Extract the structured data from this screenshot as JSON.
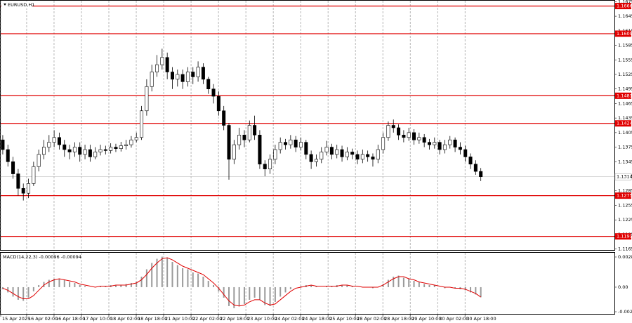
{
  "chart_data": [
    {
      "type": "candlestick",
      "title": "EURUSD,H1",
      "xlim": [
        -0.4,
        119
      ],
      "xticks": [
        {
          "value": -0.4,
          "label": "15 Apr 2025"
        },
        {
          "value": 4.65,
          "label": "16 Apr 02:00"
        },
        {
          "value": 9.98,
          "label": "16 Apr 18:00"
        },
        {
          "value": 15.31,
          "label": "17 Apr 10:00"
        },
        {
          "value": 20.64,
          "label": "18 Apr 02:00"
        },
        {
          "value": 25.97,
          "label": "18 Apr 18:00"
        },
        {
          "value": 31.3,
          "label": "21 Apr 10:00"
        },
        {
          "value": 36.63,
          "label": "22 Apr 02:00"
        },
        {
          "value": 41.96,
          "label": "22 Apr 18:00"
        },
        {
          "value": 47.29,
          "label": "23 Apr 10:00"
        },
        {
          "value": 52.62,
          "label": "24 Apr 02:00"
        },
        {
          "value": 57.95,
          "label": "24 Apr 18:00"
        },
        {
          "value": 63.28,
          "label": "25 Apr 10:00"
        },
        {
          "value": 68.61,
          "label": "28 Apr 02:00"
        },
        {
          "value": 73.94,
          "label": "28 Apr 18:00"
        },
        {
          "value": 79.27,
          "label": "29 Apr 10:00"
        },
        {
          "value": 84.6,
          "label": "30 Apr 02:00"
        },
        {
          "value": 89.93,
          "label": "30 Apr 18:00"
        }
      ],
      "ylim": [
        1.1163,
        1.1677
      ],
      "yticks": [
        1.1165,
        1.1195,
        1.1225,
        1.1255,
        1.1285,
        1.1315,
        1.1345,
        1.1375,
        1.1405,
        1.1435,
        1.1465,
        1.1495,
        1.1525,
        1.1555,
        1.1585,
        1.1615,
        1.1645,
        1.1675
      ],
      "grid": true,
      "levels": {
        "color": "#e00000",
        "values": [
          1.1666,
          1.1609,
          1.1481,
          1.1424,
          1.1275,
          1.1191
        ]
      },
      "last_price": 1.1314,
      "up_color": "#ffffff",
      "down_color": "#000000",
      "open": [
        1.139,
        1.137,
        1.1345,
        1.132,
        1.129,
        1.128,
        1.13,
        1.1335,
        1.136,
        1.1375,
        1.1385,
        1.1395,
        1.138,
        1.137,
        1.1365,
        1.1375,
        1.136,
        1.137,
        1.1355,
        1.1365,
        1.137,
        1.1368,
        1.1375,
        1.1372,
        1.1378,
        1.138,
        1.139,
        1.1395,
        1.145,
        1.15,
        1.153,
        1.1545,
        1.156,
        1.153,
        1.1515,
        1.1525,
        1.151,
        1.153,
        1.152,
        1.154,
        1.1515,
        1.1495,
        1.148,
        1.145,
        1.142,
        1.135,
        1.138,
        1.14,
        1.139,
        1.142,
        1.14,
        1.134,
        1.133,
        1.135,
        1.137,
        1.1385,
        1.138,
        1.139,
        1.1375,
        1.1385,
        1.136,
        1.1345,
        1.135,
        1.1365,
        1.1375,
        1.136,
        1.137,
        1.1355,
        1.1365,
        1.136,
        1.135,
        1.136,
        1.1355,
        1.135,
        1.137,
        1.1395,
        1.142,
        1.1415,
        1.14,
        1.1395,
        1.1405,
        1.139,
        1.1395,
        1.1385,
        1.138,
        1.1385,
        1.137,
        1.138,
        1.139,
        1.1375,
        1.137,
        1.1355,
        1.134,
        1.1325
      ],
      "high": [
        1.14,
        1.138,
        1.1355,
        1.133,
        1.13,
        1.131,
        1.1345,
        1.137,
        1.139,
        1.14,
        1.141,
        1.1405,
        1.139,
        1.138,
        1.1385,
        1.1385,
        1.138,
        1.138,
        1.1375,
        1.138,
        1.1378,
        1.1383,
        1.1382,
        1.1386,
        1.139,
        1.1398,
        1.1405,
        1.146,
        1.1515,
        1.1545,
        1.1565,
        1.1578,
        1.157,
        1.154,
        1.1535,
        1.1535,
        1.154,
        1.154,
        1.1552,
        1.1548,
        1.152,
        1.1505,
        1.149,
        1.146,
        1.1425,
        1.139,
        1.1415,
        1.141,
        1.143,
        1.144,
        1.141,
        1.1348,
        1.136,
        1.138,
        1.1395,
        1.1392,
        1.14,
        1.1398,
        1.1395,
        1.139,
        1.1368,
        1.136,
        1.1375,
        1.1388,
        1.1382,
        1.138,
        1.1378,
        1.1375,
        1.1372,
        1.1368,
        1.137,
        1.1368,
        1.1362,
        1.138,
        1.1405,
        1.1428,
        1.1432,
        1.1422,
        1.141,
        1.1415,
        1.1412,
        1.1405,
        1.1402,
        1.1392,
        1.1395,
        1.139,
        1.139,
        1.1398,
        1.1395,
        1.1385,
        1.1378,
        1.1362,
        1.1348,
        1.1332
      ],
      "low": [
        1.136,
        1.1335,
        1.131,
        1.1275,
        1.1265,
        1.127,
        1.1295,
        1.1325,
        1.135,
        1.1365,
        1.1375,
        1.137,
        1.1355,
        1.135,
        1.1355,
        1.1345,
        1.135,
        1.1345,
        1.135,
        1.1358,
        1.136,
        1.1362,
        1.1365,
        1.1366,
        1.137,
        1.1374,
        1.1385,
        1.139,
        1.144,
        1.149,
        1.152,
        1.1535,
        1.1515,
        1.1495,
        1.15,
        1.1495,
        1.15,
        1.1505,
        1.151,
        1.1505,
        1.1485,
        1.1465,
        1.144,
        1.141,
        1.1308,
        1.134,
        1.137,
        1.1375,
        1.1385,
        1.139,
        1.133,
        1.1315,
        1.132,
        1.134,
        1.1362,
        1.137,
        1.1372,
        1.1365,
        1.1368,
        1.135,
        1.133,
        1.1335,
        1.1342,
        1.1358,
        1.135,
        1.1352,
        1.1345,
        1.1348,
        1.135,
        1.134,
        1.1342,
        1.1345,
        1.1335,
        1.1342,
        1.1362,
        1.1388,
        1.1405,
        1.139,
        1.1385,
        1.1388,
        1.138,
        1.1382,
        1.1375,
        1.137,
        1.1372,
        1.136,
        1.1362,
        1.1372,
        1.1365,
        1.136,
        1.1345,
        1.133,
        1.1318,
        1.1305
      ],
      "close": [
        1.137,
        1.1345,
        1.132,
        1.129,
        1.128,
        1.13,
        1.1335,
        1.136,
        1.1375,
        1.1385,
        1.1395,
        1.138,
        1.137,
        1.1365,
        1.1375,
        1.136,
        1.137,
        1.1355,
        1.1365,
        1.137,
        1.1368,
        1.1375,
        1.1372,
        1.1378,
        1.138,
        1.139,
        1.1395,
        1.145,
        1.15,
        1.153,
        1.1545,
        1.156,
        1.153,
        1.1515,
        1.1525,
        1.151,
        1.153,
        1.152,
        1.154,
        1.1515,
        1.1495,
        1.148,
        1.145,
        1.142,
        1.135,
        1.138,
        1.14,
        1.139,
        1.142,
        1.14,
        1.134,
        1.133,
        1.135,
        1.137,
        1.1385,
        1.138,
        1.139,
        1.1375,
        1.1385,
        1.136,
        1.1345,
        1.135,
        1.1365,
        1.1375,
        1.136,
        1.137,
        1.1355,
        1.1365,
        1.136,
        1.135,
        1.136,
        1.1355,
        1.135,
        1.137,
        1.1395,
        1.142,
        1.1415,
        1.14,
        1.1395,
        1.1405,
        1.139,
        1.1395,
        1.1385,
        1.138,
        1.1385,
        1.137,
        1.138,
        1.139,
        1.1375,
        1.137,
        1.1355,
        1.134,
        1.1325,
        1.1314
      ]
    },
    {
      "type": "macd",
      "title": "MACD(14,22,3) -0.00096 -0.00094",
      "ylim": [
        -0.00254,
        0.00327
      ],
      "yticks": [
        0.00287,
        {
          "value": 0,
          "label": "0.00"
        },
        -0.00234
      ],
      "series": [
        {
          "style": "histogram",
          "color": "#9a9a9a",
          "values": [
            -0.0002,
            -0.0005,
            -0.0009,
            -0.0012,
            -0.0013,
            -0.001,
            -0.0004,
            0.0002,
            0.0005,
            0.0007,
            0.0008,
            0.0008,
            0.0007,
            0.0005,
            0.0004,
            0.0002,
            0.0001,
            0,
            0,
            0.0001,
            0.0001,
            0.0002,
            0.0002,
            0.0002,
            0.0003,
            0.0004,
            0.0005,
            0.001,
            0.0017,
            0.0023,
            0.0027,
            0.0029,
            0.0028,
            0.0024,
            0.0021,
            0.0018,
            0.0017,
            0.0014,
            0.0013,
            0.001,
            0.0006,
            0.0002,
            -0.0004,
            -0.001,
            -0.0018,
            -0.002,
            -0.0018,
            -0.0016,
            -0.0012,
            -0.001,
            -0.0012,
            -0.0017,
            -0.0018,
            -0.0014,
            -0.0009,
            -0.0005,
            -0.0002,
            0,
            0.0001,
            0.0002,
            0.0002,
            0.0001,
            0,
            0.0001,
            0.0001,
            0.0002,
            0.0002,
            0.0002,
            0.0001,
            0,
            0,
            0,
            -0.0001,
            0,
            0.0003,
            0.0007,
            0.001,
            0.0011,
            0.0009,
            0.0008,
            0.0006,
            0.0005,
            0.0003,
            0.0002,
            0.0002,
            0,
            -0.0001,
            0,
            -0.0001,
            -0.0002,
            -0.0003,
            -0.0005,
            -0.0007,
            -0.00096
          ]
        },
        {
          "style": "line",
          "color": "#e00000",
          "values": [
            -0.0001,
            -0.0003,
            -0.0006,
            -0.0009,
            -0.0011,
            -0.0011,
            -0.0008,
            -0.0003,
            0.0002,
            0.0005,
            0.0007,
            0.0008,
            0.0007,
            0.0006,
            0.0005,
            0.0003,
            0.0002,
            0.0001,
            0,
            0.0001,
            0.0001,
            0.0001,
            0.0002,
            0.0002,
            0.0002,
            0.0003,
            0.0004,
            0.0007,
            0.0012,
            0.0018,
            0.0023,
            0.0027,
            0.0028,
            0.0026,
            0.0023,
            0.002,
            0.0018,
            0.0016,
            0.0014,
            0.0012,
            0.0008,
            0.0004,
            -0.0001,
            -0.0007,
            -0.0013,
            -0.0017,
            -0.0018,
            -0.0017,
            -0.0014,
            -0.0012,
            -0.0012,
            -0.0015,
            -0.0017,
            -0.0016,
            -0.0012,
            -0.0008,
            -0.0004,
            -0.0001,
            0,
            0.0001,
            0.0002,
            0.0001,
            0.0001,
            0.0001,
            0.0001,
            0.0001,
            0.0002,
            0.0002,
            0.0001,
            0.0001,
            0,
            0,
            0,
            0,
            0.0002,
            0.0005,
            0.0008,
            0.001,
            0.001,
            0.0008,
            0.0007,
            0.0005,
            0.0004,
            0.0003,
            0.0002,
            0.0001,
            0,
            0,
            -0.0001,
            -0.0001,
            -0.0002,
            -0.0004,
            -0.0006,
            -0.00094
          ]
        }
      ]
    }
  ]
}
